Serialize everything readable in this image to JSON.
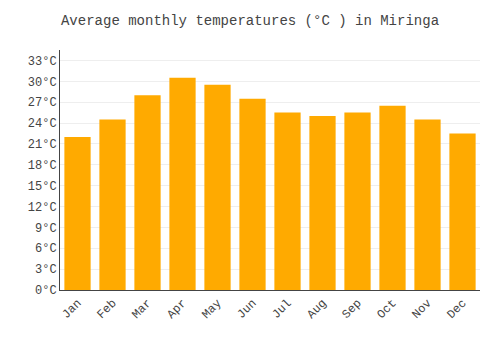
{
  "chart_data": {
    "type": "bar",
    "title": "Average monthly temperatures (°C ) in Miringa",
    "categories": [
      "Jan",
      "Feb",
      "Mar",
      "Apr",
      "May",
      "Jun",
      "Jul",
      "Aug",
      "Sep",
      "Oct",
      "Nov",
      "Dec"
    ],
    "values": [
      22.0,
      24.5,
      28.0,
      30.5,
      29.5,
      27.5,
      25.5,
      25.0,
      25.5,
      26.5,
      24.5,
      22.5
    ],
    "color": "#FFAA00",
    "ylim": [
      0,
      34.5
    ],
    "yticks": [
      {
        "value": 0,
        "label": "0°C"
      },
      {
        "value": 3,
        "label": "3°C"
      },
      {
        "value": 6,
        "label": "6°C"
      },
      {
        "value": 9,
        "label": "9°C"
      },
      {
        "value": 12,
        "label": "12°C"
      },
      {
        "value": 15,
        "label": "15°C"
      },
      {
        "value": 18,
        "label": "18°C"
      },
      {
        "value": 21,
        "label": "21°C"
      },
      {
        "value": 24,
        "label": "24°C"
      },
      {
        "value": 27,
        "label": "27°C"
      },
      {
        "value": 30,
        "label": "30°C"
      },
      {
        "value": 33,
        "label": "33°C"
      }
    ],
    "grid": true
  }
}
